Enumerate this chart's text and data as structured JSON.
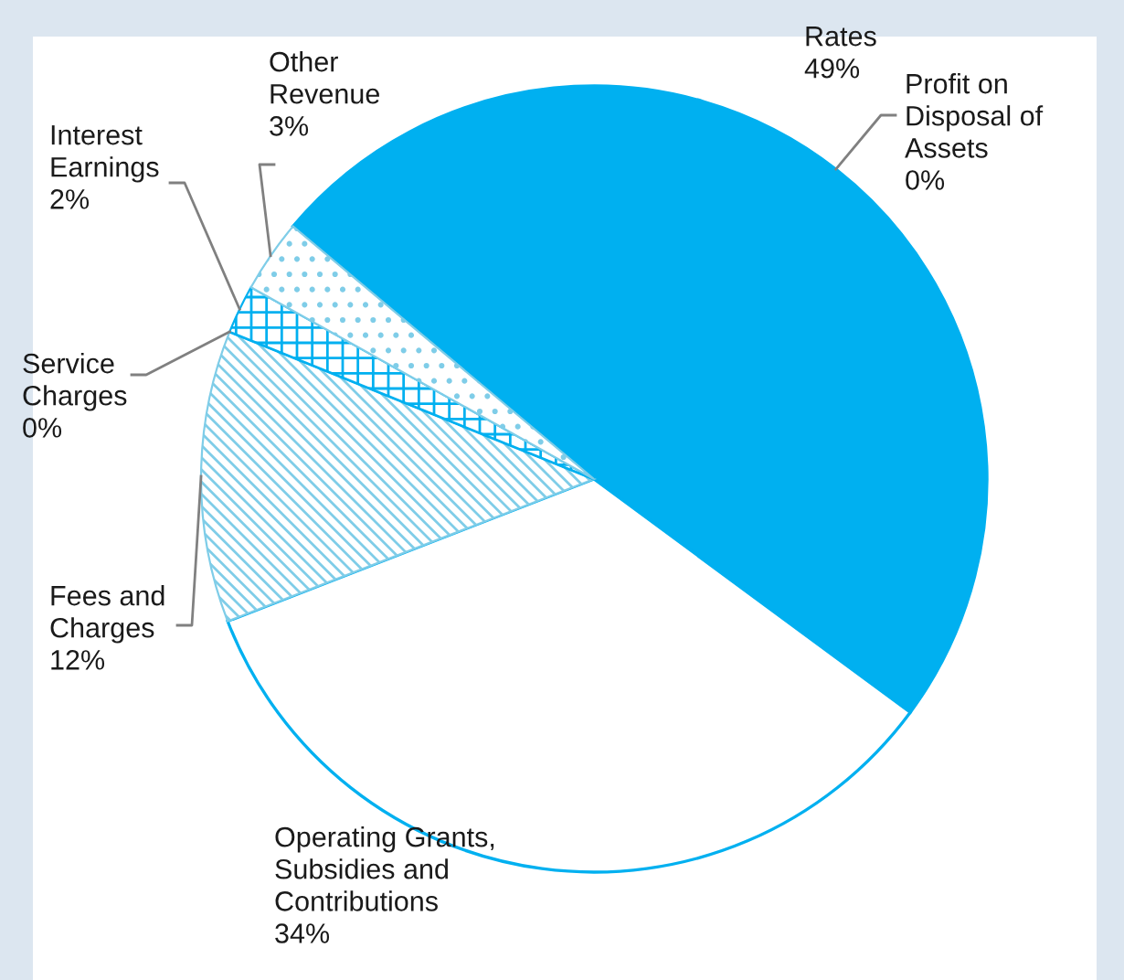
{
  "chart_data": {
    "type": "pie",
    "categories": [
      "Rates",
      "Profit on Disposal of Assets",
      "Operating Grants, Subsidies and Contributions",
      "Fees and Charges",
      "Service Charges",
      "Interest Earnings",
      "Other Revenue"
    ],
    "values": [
      49,
      0,
      34,
      12,
      0,
      2,
      3
    ],
    "value_labels": [
      "49%",
      "0%",
      "34%",
      "12%",
      "0%",
      "2%",
      "3%"
    ],
    "colors": [
      "#00b0f0",
      "#00b0f0",
      "#ffffff",
      "#7fcde8",
      "#00b0f0",
      "#00b0f0",
      "#7fcde8"
    ]
  }
}
